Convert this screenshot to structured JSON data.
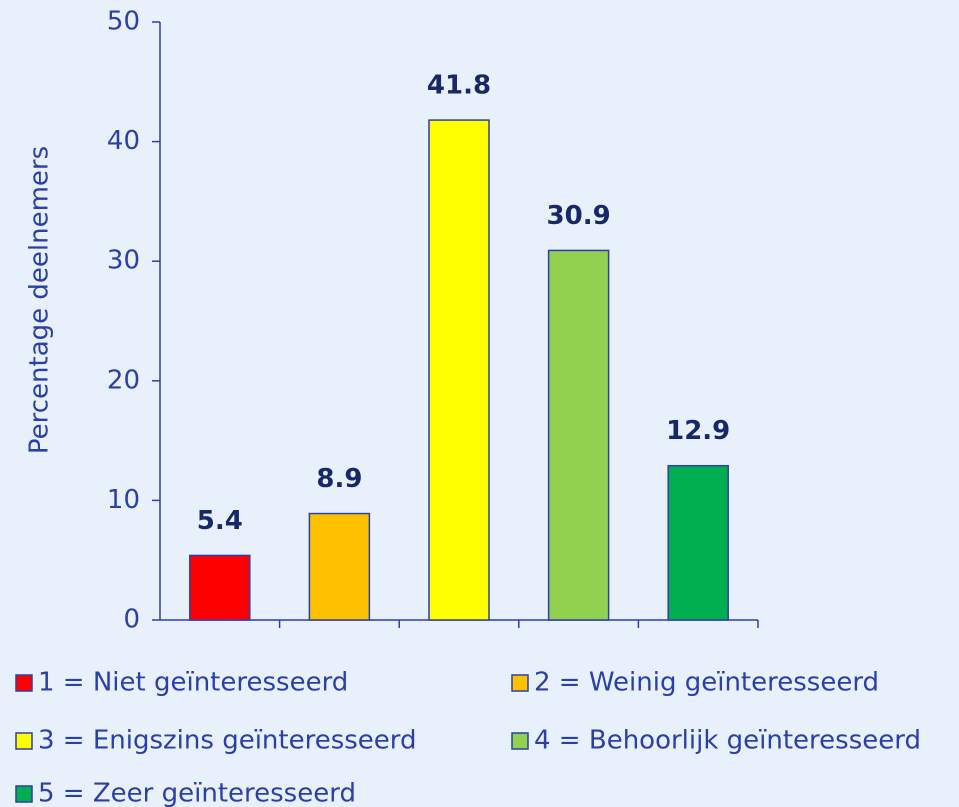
{
  "chart_data": {
    "type": "bar",
    "y_label": "Percentage deelnemers",
    "categories": [
      "1 = Niet geïnteresseerd",
      "2 = Weinig geïnteresseerd",
      "3 = Enigszins geïnteresseerd",
      "4 = Behoorlijk geïnteresseerd",
      "5 = Zeer geïnteresseerd"
    ],
    "values": [
      5.4,
      8.9,
      41.8,
      30.9,
      12.9
    ],
    "colors": [
      "#ff0000",
      "#ffc000",
      "#ffff00",
      "#92d050",
      "#00b050"
    ],
    "ylim": [
      0,
      50
    ],
    "yticks": [
      0,
      10,
      20,
      30,
      40,
      50
    ],
    "grid": false
  }
}
